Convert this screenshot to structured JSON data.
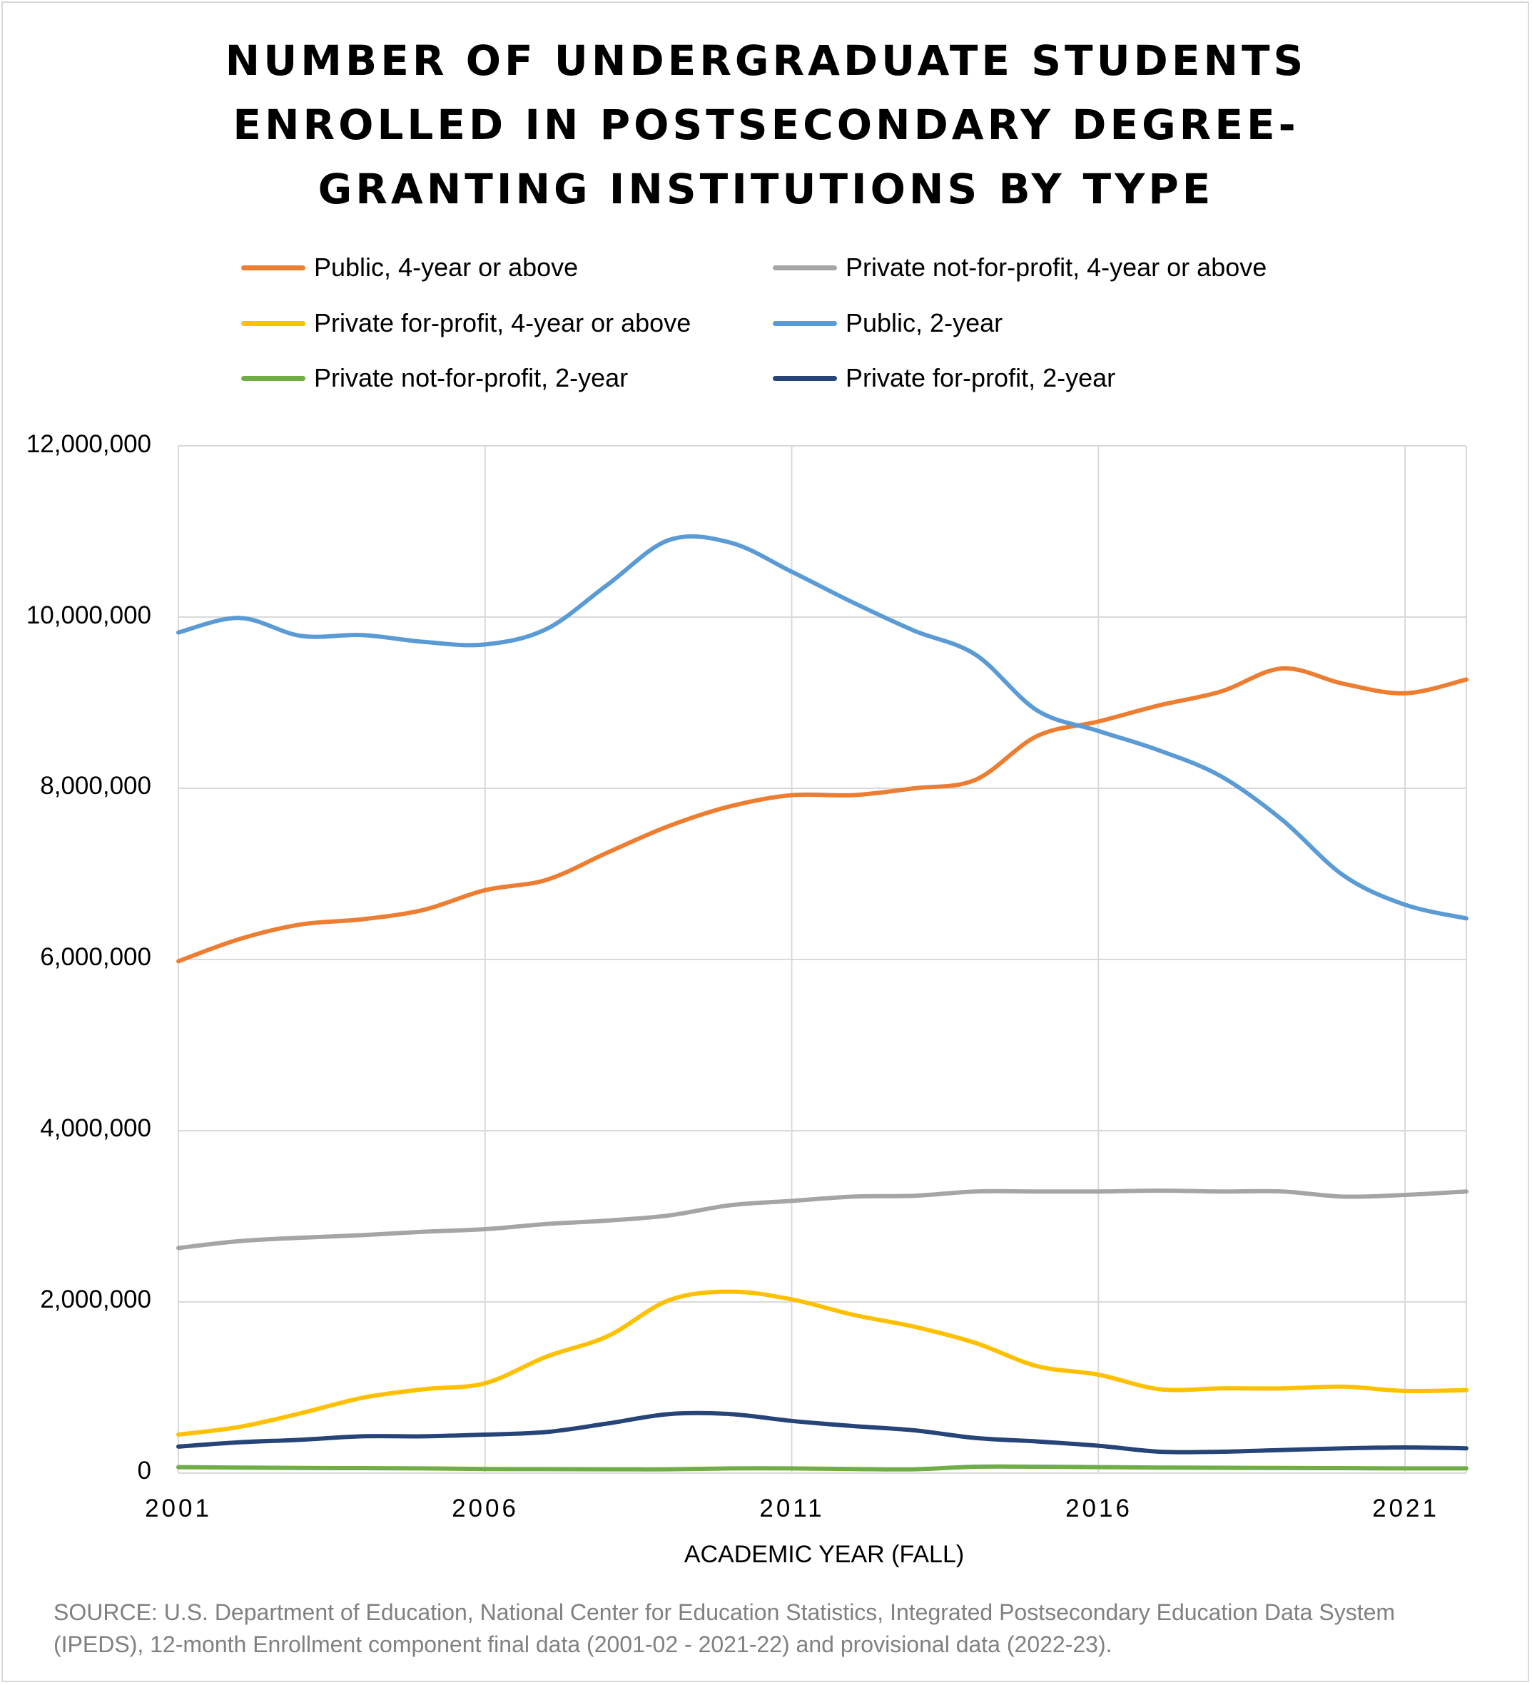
{
  "chart_data": {
    "type": "line",
    "title": [
      "NUMBER OF UNDERGRADUATE STUDENTS",
      "ENROLLED IN POSTSECONDARY DEGREE-",
      "GRANTING INSTITUTIONS BY TYPE"
    ],
    "xlabel": "ACADEMIC YEAR (FALL)",
    "ylabel": "",
    "xlim": [
      2001,
      2022
    ],
    "ylim": [
      0,
      12000000
    ],
    "x_ticks": [
      "2001",
      "2006",
      "2011",
      "2016",
      "2021"
    ],
    "y_ticks": [
      "0",
      "2,000,000",
      "4,000,000",
      "6,000,000",
      "8,000,000",
      "10,000,000",
      "12,000,000"
    ],
    "grid": true,
    "legend_position": "top",
    "x": [
      2001,
      2002,
      2003,
      2004,
      2005,
      2006,
      2007,
      2008,
      2009,
      2010,
      2011,
      2012,
      2013,
      2014,
      2015,
      2016,
      2017,
      2018,
      2019,
      2020,
      2021,
      2022
    ],
    "series": [
      {
        "name": "Public, 4-year or above",
        "color": "#ED7D31",
        "values": [
          5980000,
          6240000,
          6410000,
          6470000,
          6580000,
          6810000,
          6930000,
          7250000,
          7560000,
          7790000,
          7920000,
          7920000,
          8000000,
          8100000,
          8610000,
          8780000,
          8970000,
          9130000,
          9400000,
          9220000,
          9110000,
          9270000
        ]
      },
      {
        "name": "Private not-for-profit, 4-year or above",
        "color": "#A5A5A5",
        "values": [
          2630000,
          2710000,
          2750000,
          2780000,
          2820000,
          2850000,
          2910000,
          2950000,
          3010000,
          3130000,
          3180000,
          3230000,
          3240000,
          3290000,
          3290000,
          3290000,
          3300000,
          3290000,
          3290000,
          3230000,
          3250000,
          3290000
        ]
      },
      {
        "name": "Private for-profit, 4-year or above",
        "color": "#FFC000",
        "values": [
          450000,
          540000,
          700000,
          880000,
          980000,
          1050000,
          1360000,
          1600000,
          2020000,
          2120000,
          2030000,
          1850000,
          1710000,
          1520000,
          1250000,
          1150000,
          980000,
          990000,
          990000,
          1010000,
          960000,
          970000
        ]
      },
      {
        "name": "Public, 2-year",
        "color": "#5B9BD5",
        "values": [
          9820000,
          9990000,
          9780000,
          9790000,
          9710000,
          9680000,
          9860000,
          10380000,
          10900000,
          10870000,
          10530000,
          10170000,
          9840000,
          9560000,
          8910000,
          8670000,
          8440000,
          8140000,
          7630000,
          6980000,
          6640000,
          6480000
        ]
      },
      {
        "name": "Private not-for-profit, 2-year",
        "color": "#70AD47",
        "values": [
          70000,
          65000,
          60000,
          58000,
          55000,
          48000,
          47000,
          45000,
          45000,
          55000,
          55000,
          48000,
          45000,
          75000,
          75000,
          70000,
          65000,
          62000,
          60000,
          58000,
          55000,
          55000
        ]
      },
      {
        "name": "Private for-profit, 2-year",
        "color": "#264478",
        "values": [
          310000,
          360000,
          390000,
          430000,
          430000,
          450000,
          480000,
          580000,
          690000,
          690000,
          610000,
          550000,
          500000,
          410000,
          370000,
          320000,
          250000,
          250000,
          270000,
          290000,
          300000,
          290000
        ]
      }
    ]
  },
  "source": [
    "SOURCE: U.S. Department of Education, National Center for Education Statistics, Integrated Postsecondary Education Data System",
    "(IPEDS), 12-month Enrollment component final data (2001-02 - 2021-22) and provisional data (2022-23)."
  ],
  "colors": {
    "gridline": "#d9d9d9",
    "source_text": "#808080"
  }
}
